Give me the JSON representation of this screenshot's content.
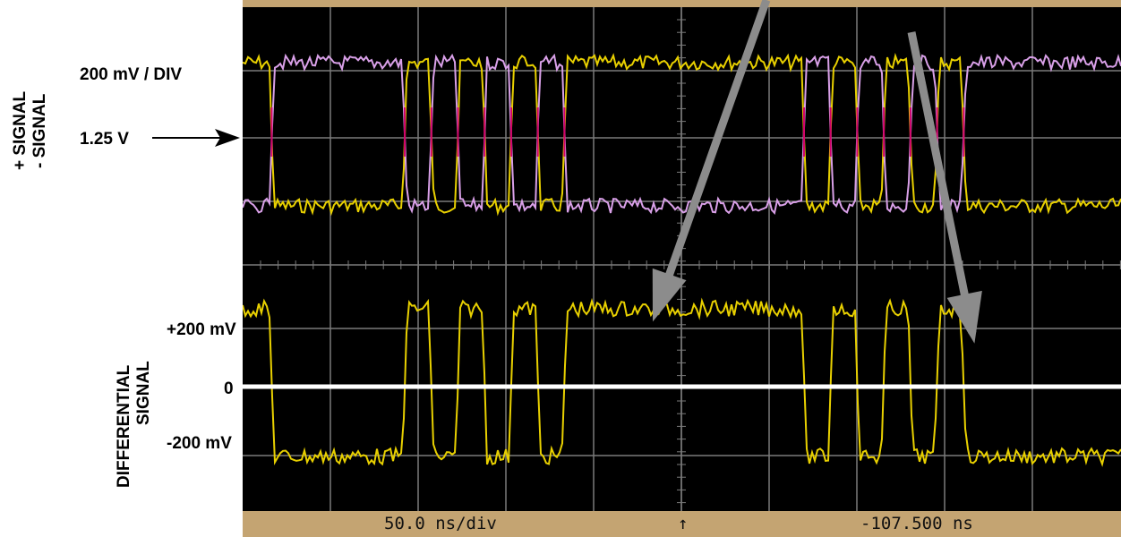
{
  "labels": {
    "plus_signal": "+ SIGNAL",
    "minus_signal": "- SIGNAL",
    "volts_per_div": "200 mV / DIV",
    "offset_level": "1.25 V",
    "differential": "DIFFERENTIAL",
    "differential_sub": "SIGNAL",
    "plus_200": "+200 mV",
    "zero": "0",
    "minus_200": "-200 mV"
  },
  "status_bar": {
    "timebase": "50.0 ns/div",
    "trigger_marker": "↑",
    "time_offset": "-107.500 ns"
  },
  "colors": {
    "screen": "#000000",
    "grid": "#7a7a7a",
    "frame": "#c4a472",
    "plus_trace": "#e8d000",
    "minus_trace": "#d9a0e8",
    "crossing": "#d0006a",
    "zero_line": "#ffffff",
    "arrow": "#8c8c8c"
  },
  "chart_data": {
    "type": "line",
    "x_unit": "ns",
    "x_per_div": 50,
    "x_divisions": 10,
    "x_range": [
      -357.5,
      142.5
    ],
    "y_unit": "mV",
    "y_per_div": 200,
    "upper_panel": {
      "reference_level": "1.25 V",
      "series": [
        "plus_signal",
        "minus_signal"
      ]
    },
    "lower_panel": {
      "series": [
        "differential_signal"
      ],
      "y_ticks": [
        "+200 mV",
        "0",
        "-200 mV"
      ]
    },
    "logic_bits": [
      1,
      0,
      0,
      0,
      0,
      0,
      1,
      0,
      1,
      0,
      1,
      0,
      1,
      1,
      1,
      1,
      1,
      1,
      1,
      1,
      1,
      0,
      1,
      0,
      1,
      0,
      1,
      0,
      0,
      0,
      0,
      0,
      0
    ]
  }
}
